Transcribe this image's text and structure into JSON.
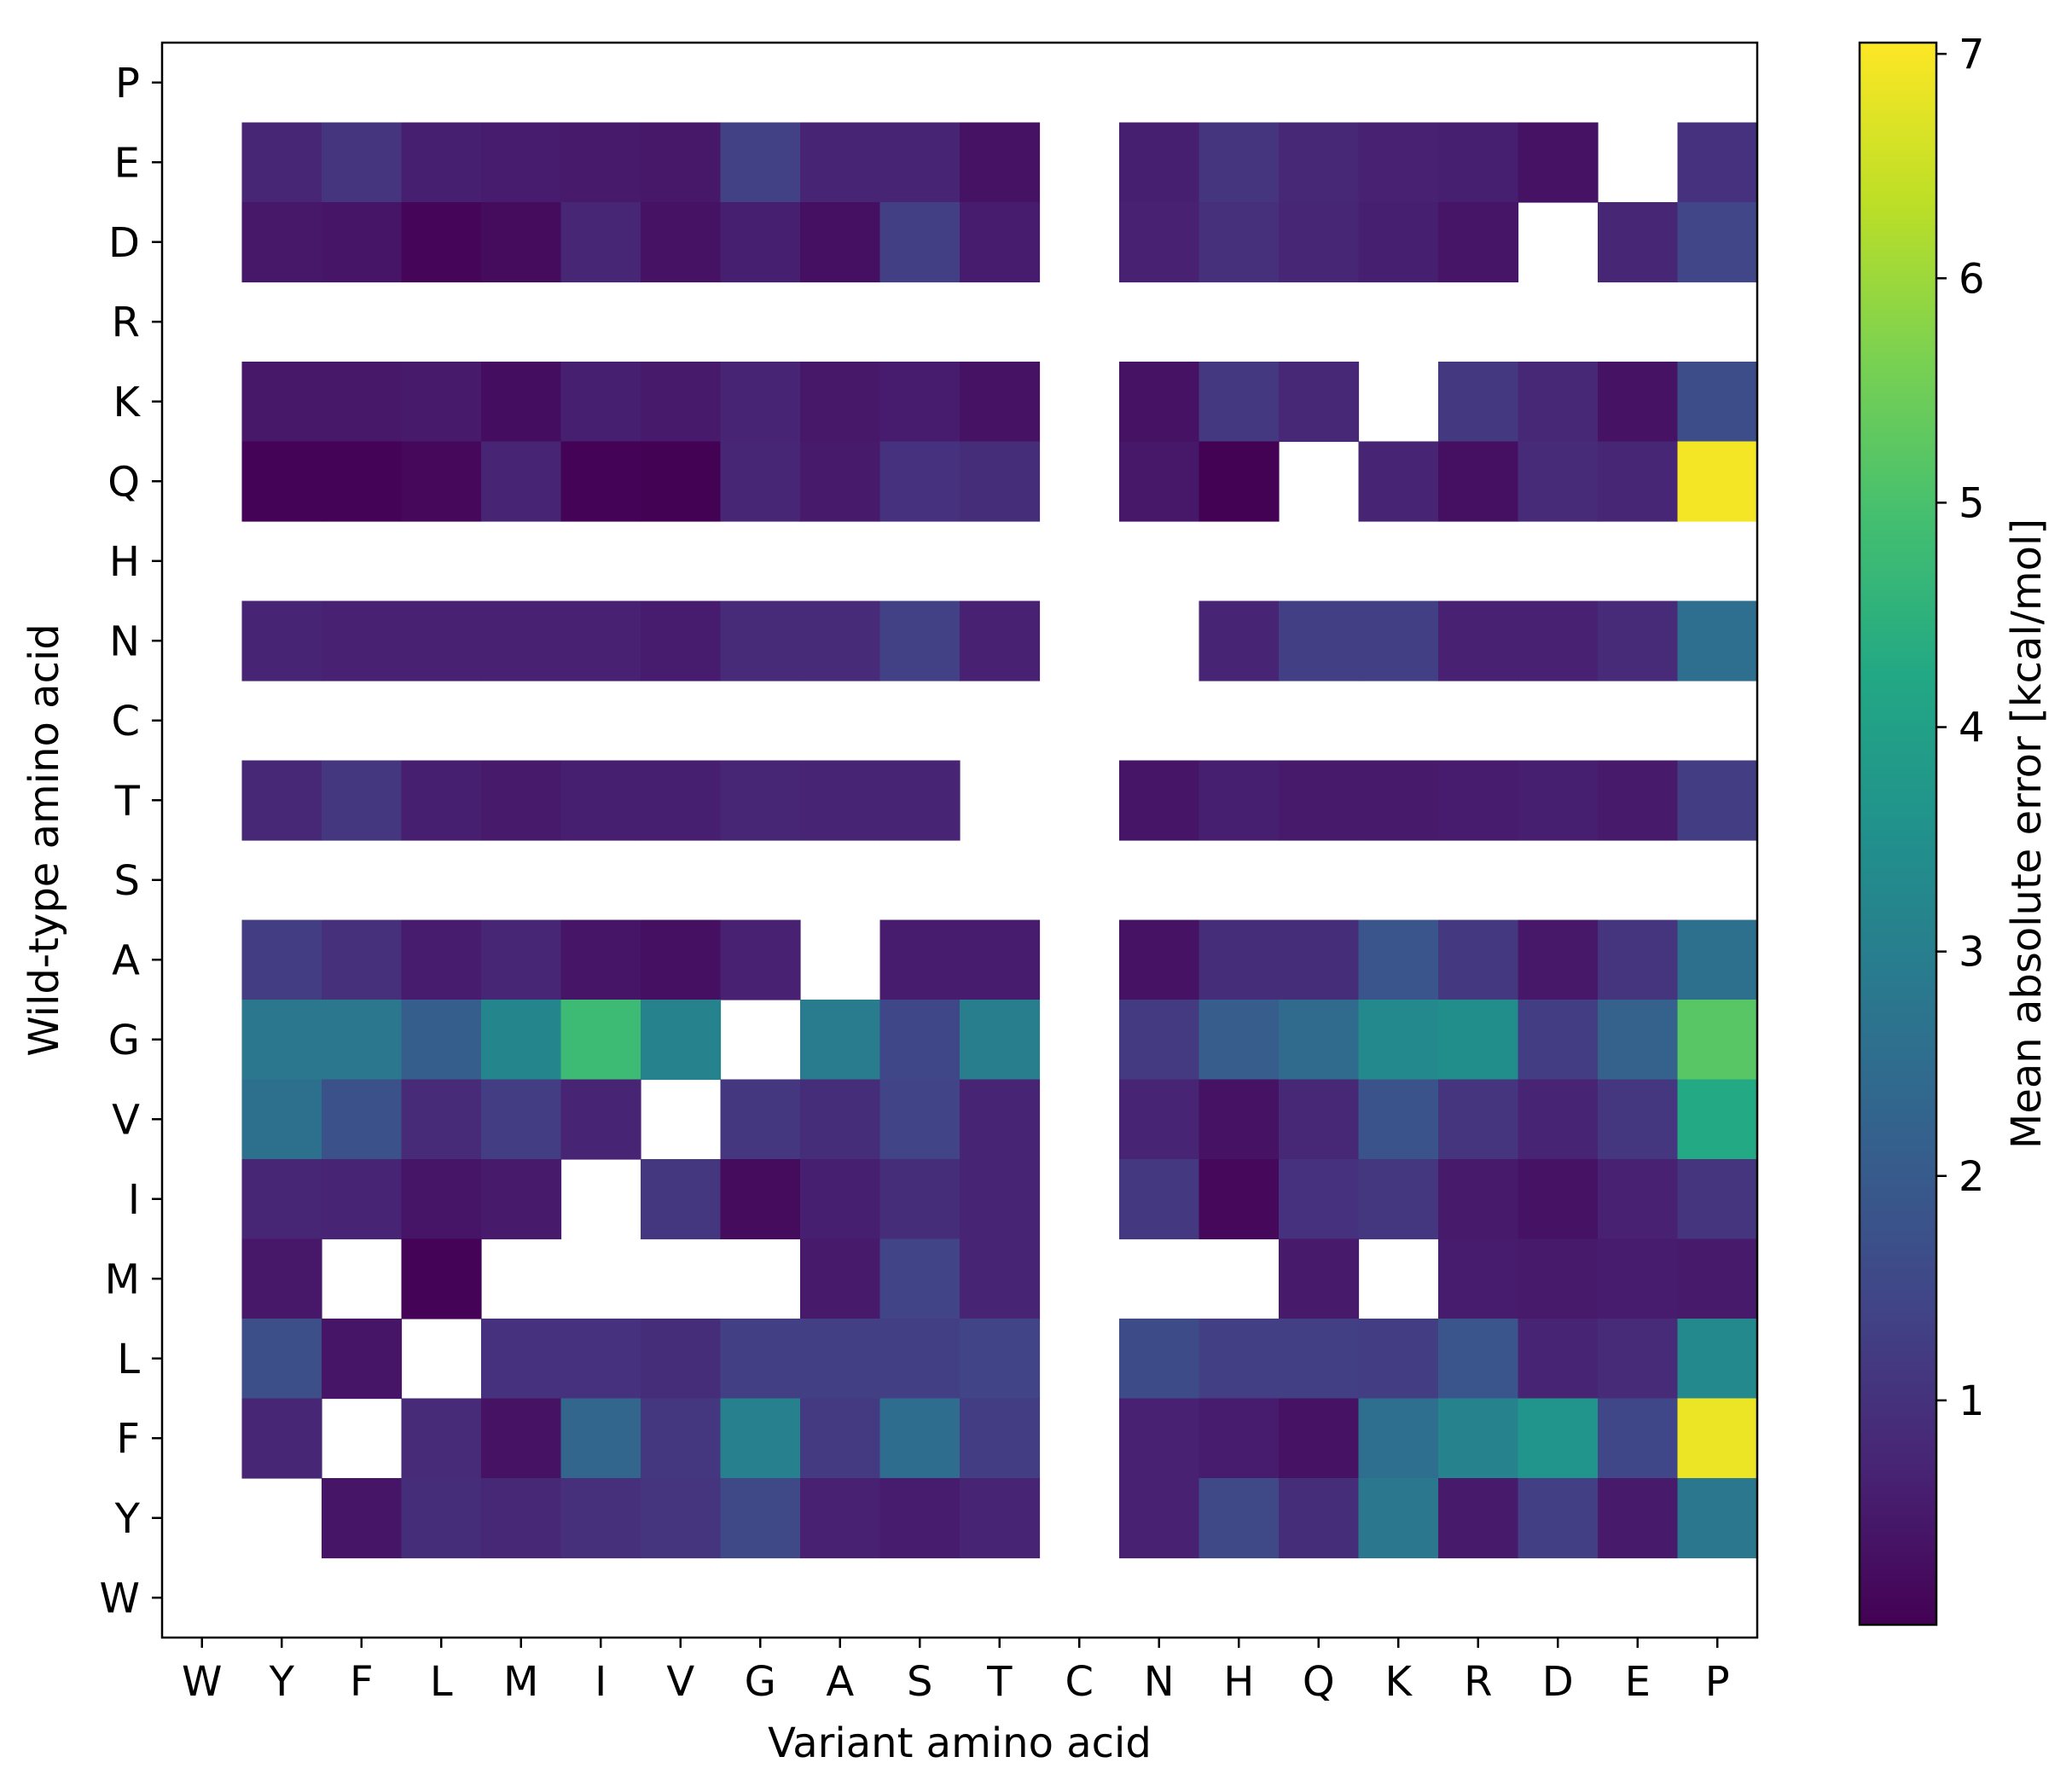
{
  "chart_data": {
    "type": "heatmap",
    "xlabel": "Variant amino acid",
    "ylabel": "Wild-type amino acid",
    "x_categories": [
      "W",
      "Y",
      "F",
      "L",
      "M",
      "I",
      "V",
      "G",
      "A",
      "S",
      "T",
      "C",
      "N",
      "H",
      "Q",
      "K",
      "R",
      "D",
      "E",
      "P"
    ],
    "y_categories_top_to_bottom": [
      "P",
      "E",
      "D",
      "R",
      "K",
      "Q",
      "H",
      "N",
      "C",
      "T",
      "S",
      "A",
      "G",
      "V",
      "I",
      "M",
      "L",
      "F",
      "Y",
      "W"
    ],
    "values": [
      [
        null,
        null,
        null,
        null,
        null,
        null,
        null,
        null,
        null,
        null,
        null,
        null,
        null,
        null,
        null,
        null,
        null,
        null,
        null,
        null
      ],
      [
        null,
        0.75,
        1.05,
        0.6,
        0.55,
        0.5,
        0.45,
        1.35,
        0.7,
        0.7,
        0.35,
        null,
        0.6,
        1.05,
        0.8,
        0.65,
        0.6,
        0.35,
        null,
        1.0
      ],
      [
        null,
        0.45,
        0.4,
        0.1,
        0.2,
        0.75,
        0.35,
        0.6,
        0.3,
        1.3,
        0.55,
        null,
        0.65,
        0.95,
        0.75,
        0.6,
        0.4,
        null,
        0.75,
        1.45
      ],
      [
        null,
        null,
        null,
        null,
        null,
        null,
        null,
        null,
        null,
        null,
        null,
        null,
        null,
        null,
        null,
        null,
        null,
        null,
        null,
        null
      ],
      [
        null,
        0.45,
        0.45,
        0.5,
        0.25,
        0.6,
        0.5,
        0.7,
        0.45,
        0.55,
        0.35,
        null,
        0.35,
        1.15,
        0.8,
        null,
        1.15,
        0.8,
        0.35,
        1.65
      ],
      [
        null,
        0.05,
        0.05,
        0.15,
        0.7,
        0.05,
        0.02,
        0.75,
        0.5,
        1.0,
        0.9,
        null,
        0.45,
        0.02,
        null,
        0.7,
        0.3,
        0.85,
        0.75,
        6.95
      ],
      [
        null,
        null,
        null,
        null,
        null,
        null,
        null,
        null,
        null,
        null,
        null,
        null,
        null,
        null,
        null,
        null,
        null,
        null,
        null,
        null
      ],
      [
        null,
        0.7,
        0.65,
        0.65,
        0.65,
        0.65,
        0.55,
        0.85,
        0.85,
        1.35,
        0.65,
        null,
        null,
        0.7,
        1.3,
        1.3,
        0.65,
        0.65,
        0.85,
        2.55
      ],
      [
        null,
        null,
        null,
        null,
        null,
        null,
        null,
        null,
        null,
        null,
        null,
        null,
        null,
        null,
        null,
        null,
        null,
        null,
        null,
        null
      ],
      [
        null,
        0.8,
        1.1,
        0.6,
        0.5,
        0.6,
        0.6,
        0.75,
        0.7,
        0.7,
        null,
        null,
        0.4,
        0.6,
        0.5,
        0.5,
        0.55,
        0.6,
        0.5,
        1.25
      ],
      [
        null,
        null,
        null,
        null,
        null,
        null,
        null,
        null,
        null,
        null,
        null,
        null,
        null,
        null,
        null,
        null,
        null,
        null,
        null,
        null
      ],
      [
        null,
        1.25,
        0.95,
        0.55,
        0.75,
        0.4,
        0.3,
        0.65,
        null,
        0.55,
        0.55,
        null,
        0.35,
        0.9,
        0.9,
        1.85,
        1.15,
        0.45,
        1.05,
        2.6
      ],
      [
        null,
        2.8,
        2.8,
        2.1,
        3.2,
        4.8,
        3.1,
        null,
        2.9,
        1.5,
        3.0,
        null,
        1.2,
        2.05,
        2.45,
        3.3,
        3.45,
        1.25,
        2.2,
        5.2
      ],
      [
        null,
        2.6,
        1.75,
        0.85,
        1.25,
        0.7,
        null,
        1.1,
        0.9,
        1.4,
        0.7,
        null,
        0.7,
        0.35,
        0.8,
        1.8,
        1.05,
        0.7,
        1.1,
        4.25
      ],
      [
        null,
        0.75,
        0.7,
        0.4,
        0.5,
        null,
        1.1,
        0.2,
        0.6,
        0.9,
        0.7,
        null,
        1.15,
        0.15,
        1.0,
        1.1,
        0.5,
        0.35,
        0.65,
        1.05
      ],
      [
        null,
        0.45,
        null,
        0.05,
        null,
        null,
        null,
        null,
        0.5,
        1.4,
        0.7,
        null,
        null,
        null,
        0.5,
        null,
        0.55,
        0.5,
        0.55,
        0.5
      ],
      [
        null,
        1.7,
        0.4,
        null,
        1.0,
        1.0,
        0.9,
        1.3,
        1.3,
        1.3,
        1.4,
        null,
        1.6,
        1.3,
        1.3,
        1.25,
        1.85,
        0.7,
        0.85,
        3.3
      ],
      [
        null,
        0.75,
        null,
        0.85,
        0.35,
        2.3,
        1.1,
        3.05,
        1.2,
        2.5,
        1.25,
        null,
        0.65,
        0.55,
        0.35,
        2.55,
        3.1,
        3.65,
        1.5,
        6.85
      ],
      [
        null,
        null,
        0.4,
        0.9,
        0.8,
        0.95,
        1.05,
        1.55,
        0.65,
        0.55,
        0.7,
        null,
        0.65,
        1.55,
        0.9,
        2.8,
        0.5,
        1.3,
        0.5,
        2.8
      ],
      [
        null,
        null,
        null,
        null,
        null,
        null,
        null,
        null,
        null,
        null,
        null,
        null,
        null,
        null,
        null,
        null,
        null,
        null,
        null,
        null
      ]
    ],
    "colormap": "viridis",
    "vmin": 0.0,
    "vmax": 7.05,
    "colorbar_label": "Mean absolute error [kcal/mol]",
    "colorbar_ticks": [
      1,
      2,
      3,
      4,
      5,
      6,
      7
    ],
    "missing_color": "#ffffff",
    "grid": false
  }
}
